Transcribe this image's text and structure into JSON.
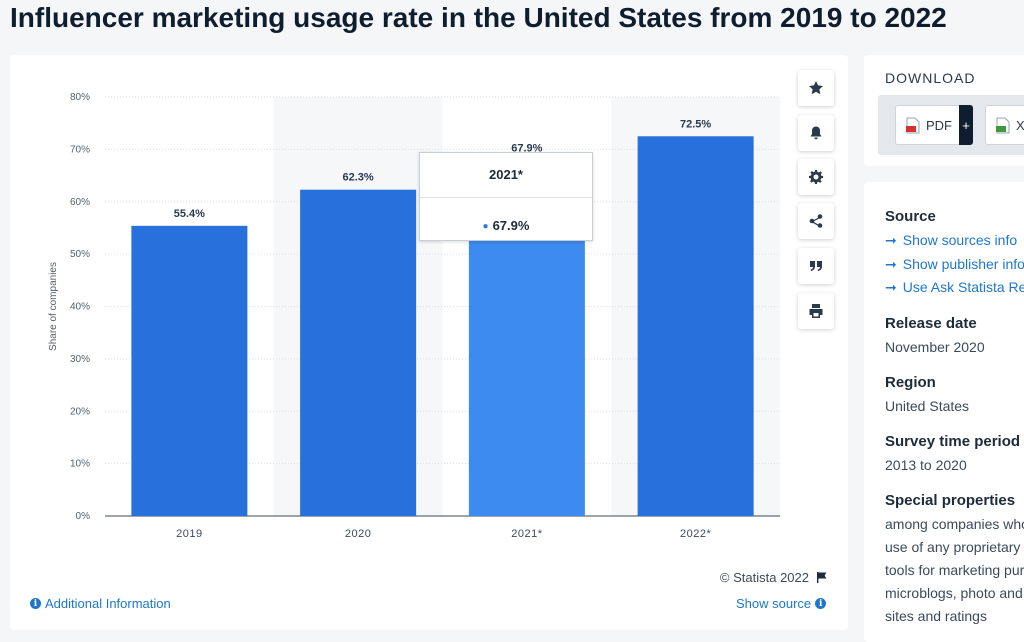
{
  "page": {
    "title": "Influencer marketing usage rate in the United States from 2019 to 2022"
  },
  "chart_data": {
    "type": "bar",
    "categories": [
      "2019",
      "2020",
      "2021*",
      "2022*"
    ],
    "values": [
      55.4,
      62.3,
      67.9,
      72.5
    ],
    "value_labels": [
      "55.4%",
      "62.3%",
      "67.9%",
      "72.5%"
    ],
    "ylabel": "Share of companies",
    "yticks": [
      "0%",
      "10%",
      "20%",
      "30%",
      "40%",
      "50%",
      "60%",
      "70%",
      "80%"
    ],
    "ylim": [
      0,
      80
    ],
    "grid": true,
    "bar_color": "#2870db",
    "highlight_color": "#3d8af0",
    "highlighted_index": 2
  },
  "tooltip": {
    "title": "2021*",
    "value": "67.9%"
  },
  "toolbar": {
    "icons": [
      "star-icon",
      "bell-icon",
      "gear-icon",
      "share-icon",
      "quote-icon",
      "print-icon"
    ]
  },
  "chart_footer": {
    "copyright": "© Statista 2022",
    "additional_info": "Additional Information",
    "show_source": "Show source"
  },
  "download": {
    "title": "DOWNLOAD",
    "pdf_label": "PDF",
    "xls_label": "X",
    "plus": "+"
  },
  "details": {
    "source_label": "Source",
    "source_links": [
      "Show sources info",
      "Show publisher info",
      "Use Ask Statista Research Service"
    ],
    "release_label": "Release date",
    "release_value": "November 2020",
    "region_label": "Region",
    "region_value": "United States",
    "survey_label": "Survey time period",
    "survey_value": "2013 to 2020",
    "special_label": "Special properties",
    "special_lines": [
      "among companies who make",
      "use of any proprietary",
      "tools for marketing purposes,",
      "microblogs, photo and video",
      "sites and ratings"
    ]
  }
}
